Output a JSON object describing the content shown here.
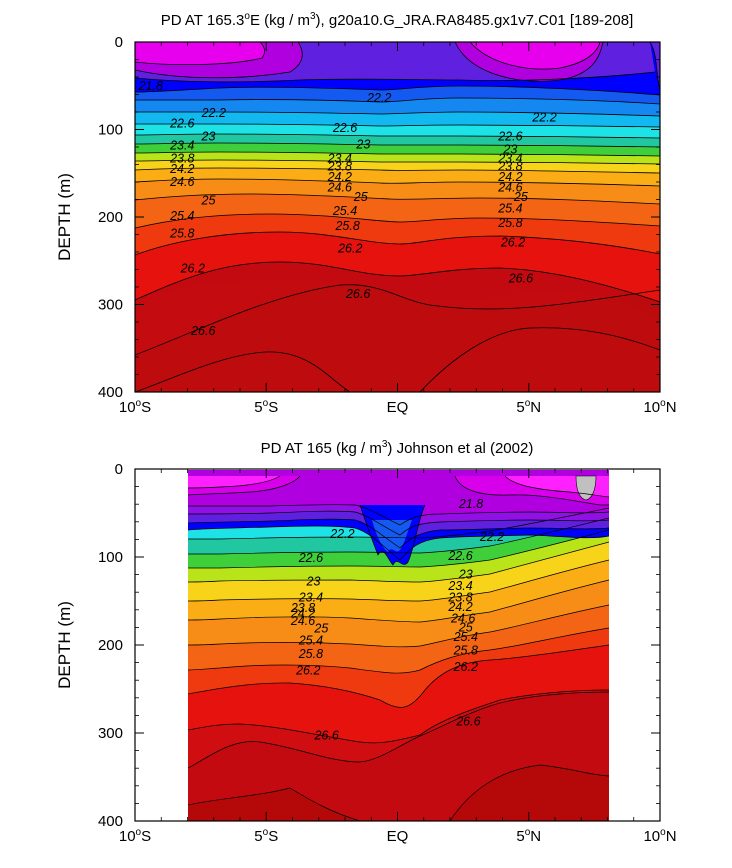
{
  "chart_data": [
    {
      "type": "contour",
      "title": "PD AT 165.3°E (kg / m³), g20a10.G_JRA.RA8485.gx1v7.C01 [189-208]",
      "title_parts": {
        "prefix": "PD AT 165.3",
        "deg": "o",
        "mid": "E (kg / m",
        "sup": "3",
        "suffix": "), g20a10.G_JRA.RA8485.gx1v7.C01 [189-208]"
      },
      "xlabel": "",
      "ylabel": "DEPTH (m)",
      "xlim": [
        -10,
        10
      ],
      "ylim": [
        400,
        0
      ],
      "data_xlim": [
        -10,
        10
      ],
      "xticks": [
        {
          "value": -10,
          "label": "10°S",
          "num": "10",
          "hemi": "S"
        },
        {
          "value": -5,
          "label": "5°S",
          "num": "5",
          "hemi": "S"
        },
        {
          "value": 0,
          "label": "EQ",
          "num": "EQ",
          "hemi": ""
        },
        {
          "value": 5,
          "label": "5°N",
          "num": "5",
          "hemi": "N"
        },
        {
          "value": 10,
          "label": "10°N",
          "num": "10",
          "hemi": "N"
        }
      ],
      "yticks": [
        {
          "value": 0,
          "label": "0"
        },
        {
          "value": 100,
          "label": "100"
        },
        {
          "value": 200,
          "label": "200"
        },
        {
          "value": 300,
          "label": "300"
        },
        {
          "value": 400,
          "label": "400"
        }
      ],
      "contour_labels": [
        {
          "text": "21.8",
          "x": -9.4,
          "y": 50
        },
        {
          "text": "22.2",
          "x": -7.0,
          "y": 81
        },
        {
          "text": "22.6",
          "x": -8.2,
          "y": 93
        },
        {
          "text": "23",
          "x": -7.2,
          "y": 108
        },
        {
          "text": "23.4",
          "x": -8.2,
          "y": 118
        },
        {
          "text": "23.8",
          "x": -8.2,
          "y": 133
        },
        {
          "text": "24.2",
          "x": -8.2,
          "y": 145
        },
        {
          "text": "24.6",
          "x": -8.2,
          "y": 160
        },
        {
          "text": "25",
          "x": -7.2,
          "y": 181
        },
        {
          "text": "25.4",
          "x": -8.2,
          "y": 199
        },
        {
          "text": "25.8",
          "x": -8.2,
          "y": 219
        },
        {
          "text": "26.2",
          "x": -7.8,
          "y": 259
        },
        {
          "text": "26.6",
          "x": -7.4,
          "y": 330
        },
        {
          "text": "22.2",
          "x": -0.7,
          "y": 64
        },
        {
          "text": "22.6",
          "x": -2.0,
          "y": 98
        },
        {
          "text": "23",
          "x": -1.3,
          "y": 117
        },
        {
          "text": "23.4",
          "x": -2.2,
          "y": 133
        },
        {
          "text": "23.8",
          "x": -2.2,
          "y": 142
        },
        {
          "text": "24.2",
          "x": -2.2,
          "y": 154
        },
        {
          "text": "24.6",
          "x": -2.2,
          "y": 166
        },
        {
          "text": "25",
          "x": -1.4,
          "y": 177
        },
        {
          "text": "25.4",
          "x": -2.0,
          "y": 193
        },
        {
          "text": "25.8",
          "x": -1.9,
          "y": 210
        },
        {
          "text": "26.2",
          "x": -1.8,
          "y": 236
        },
        {
          "text": "26.6",
          "x": -1.5,
          "y": 288
        },
        {
          "text": "22.2",
          "x": 5.6,
          "y": 86
        },
        {
          "text": "22.6",
          "x": 4.3,
          "y": 108
        },
        {
          "text": "23",
          "x": 4.3,
          "y": 123
        },
        {
          "text": "23.4",
          "x": 4.3,
          "y": 133
        },
        {
          "text": "23.8",
          "x": 4.3,
          "y": 142
        },
        {
          "text": "24.2",
          "x": 4.3,
          "y": 154
        },
        {
          "text": "24.6",
          "x": 4.3,
          "y": 166
        },
        {
          "text": "25",
          "x": 4.7,
          "y": 177
        },
        {
          "text": "25.4",
          "x": 4.3,
          "y": 190
        },
        {
          "text": "25.8",
          "x": 4.3,
          "y": 207
        },
        {
          "text": "26.2",
          "x": 4.4,
          "y": 229
        },
        {
          "text": "26.6",
          "x": 4.7,
          "y": 270
        }
      ]
    },
    {
      "type": "contour",
      "title": "PD AT 165 (kg / m³) Johnson et al (2002)",
      "title_parts": {
        "prefix": "PD AT 165 (kg / m",
        "deg": "",
        "mid": "",
        "sup": "3",
        "suffix": ") Johnson et al (2002)"
      },
      "xlabel": "",
      "ylabel": "DEPTH (m)",
      "xlim": [
        -10,
        10
      ],
      "ylim": [
        400,
        0
      ],
      "data_xlim": [
        -8,
        8
      ],
      "xticks": [
        {
          "value": -10,
          "label": "10°S",
          "num": "10",
          "hemi": "S"
        },
        {
          "value": -5,
          "label": "5°S",
          "num": "5",
          "hemi": "S"
        },
        {
          "value": 0,
          "label": "EQ",
          "num": "EQ",
          "hemi": ""
        },
        {
          "value": 5,
          "label": "5°N",
          "num": "5",
          "hemi": "N"
        },
        {
          "value": 10,
          "label": "10°N",
          "num": "10",
          "hemi": "N"
        }
      ],
      "yticks": [
        {
          "value": 0,
          "label": "0"
        },
        {
          "value": 100,
          "label": "100"
        },
        {
          "value": 200,
          "label": "200"
        },
        {
          "value": 300,
          "label": "300"
        },
        {
          "value": 400,
          "label": "400"
        }
      ],
      "contour_labels": [
        {
          "text": "21.8",
          "x": 2.8,
          "y": 40
        },
        {
          "text": "22.2",
          "x": -2.1,
          "y": 74
        },
        {
          "text": "22.2",
          "x": 3.6,
          "y": 77
        },
        {
          "text": "22.6",
          "x": -3.3,
          "y": 101
        },
        {
          "text": "22.6",
          "x": 2.4,
          "y": 99
        },
        {
          "text": "23",
          "x": -3.2,
          "y": 128
        },
        {
          "text": "23",
          "x": 2.6,
          "y": 120
        },
        {
          "text": "23.4",
          "x": -3.3,
          "y": 146
        },
        {
          "text": "23.4",
          "x": 2.4,
          "y": 133
        },
        {
          "text": "23.8",
          "x": -3.6,
          "y": 158
        },
        {
          "text": "23.8",
          "x": 2.4,
          "y": 146
        },
        {
          "text": "24.2",
          "x": -3.6,
          "y": 164
        },
        {
          "text": "24.2",
          "x": 2.4,
          "y": 157
        },
        {
          "text": "24.6",
          "x": -3.6,
          "y": 173
        },
        {
          "text": "24.6",
          "x": 2.5,
          "y": 170
        },
        {
          "text": "25",
          "x": -2.9,
          "y": 181
        },
        {
          "text": "25",
          "x": 2.6,
          "y": 180
        },
        {
          "text": "25.4",
          "x": -3.3,
          "y": 195
        },
        {
          "text": "25.4",
          "x": 2.6,
          "y": 191
        },
        {
          "text": "25.8",
          "x": -3.3,
          "y": 210
        },
        {
          "text": "25.8",
          "x": 2.6,
          "y": 206
        },
        {
          "text": "26.2",
          "x": -3.4,
          "y": 229
        },
        {
          "text": "26.2",
          "x": 2.6,
          "y": 225
        },
        {
          "text": "26.6",
          "x": -2.7,
          "y": 303
        },
        {
          "text": "26.6",
          "x": 2.7,
          "y": 287
        }
      ]
    }
  ]
}
